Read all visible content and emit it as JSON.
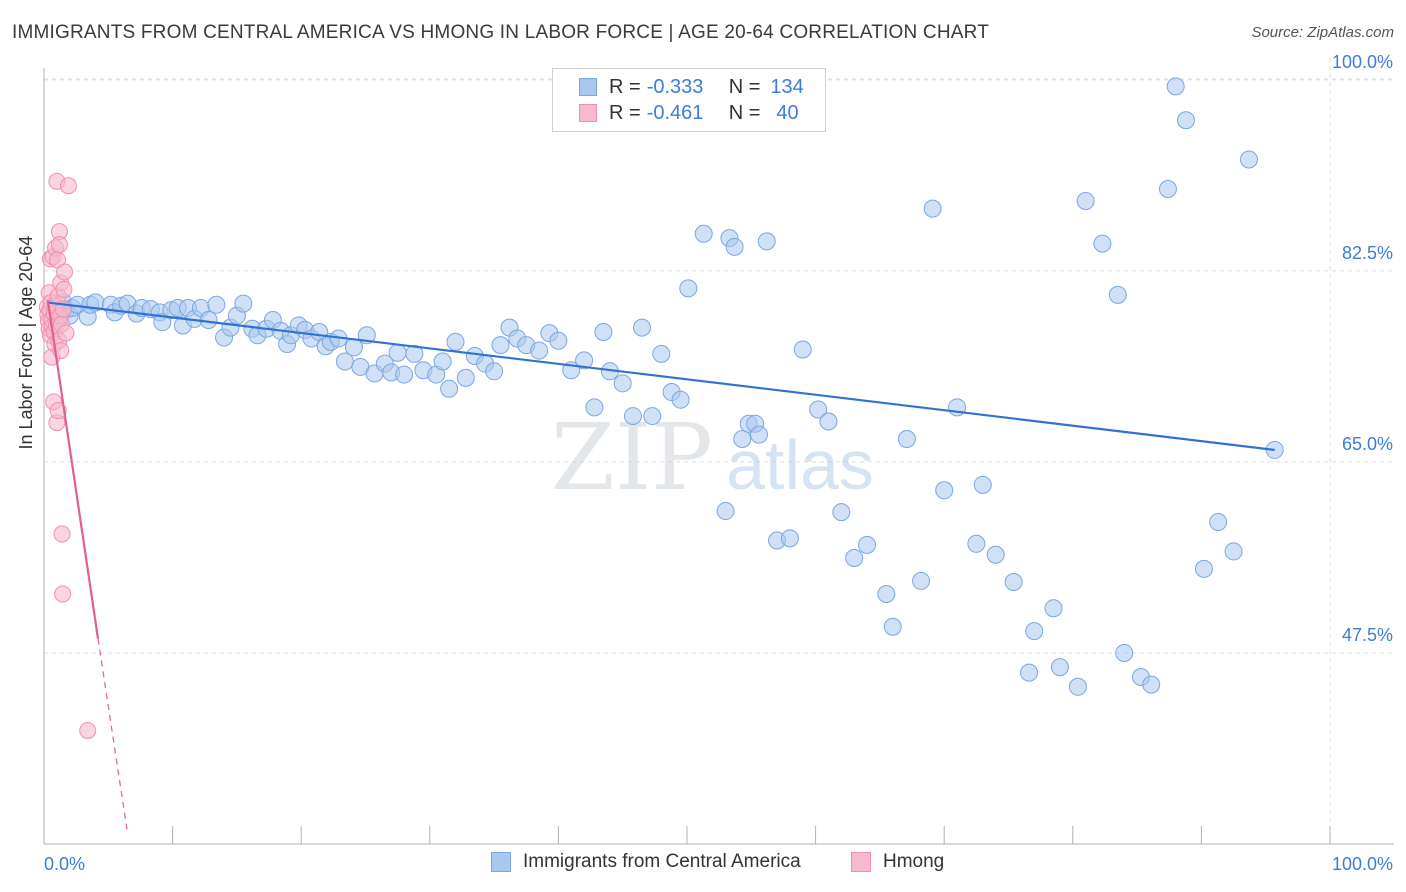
{
  "header": {
    "title": "IMMIGRANTS FROM CENTRAL AMERICA VS HMONG IN LABOR FORCE | AGE 20-64 CORRELATION CHART",
    "source": "Source: ZipAtlas.com"
  },
  "watermark": {
    "zip": "ZIP",
    "atlas": "atlas"
  },
  "legend": {
    "rows": [
      {
        "r_label": "R =",
        "r_value": "-0.333",
        "n_label": "N =",
        "n_value": "134",
        "color": "#a9c8f0"
      },
      {
        "r_label": "R =",
        "r_value": "-0.461",
        "n_label": "N =",
        "n_value": "40",
        "color": "#f7b9cc"
      }
    ]
  },
  "bottom_legend": {
    "series1": "Immigrants from Central America",
    "series2": "Hmong"
  },
  "chart_data": {
    "type": "scatter",
    "title": "IMMIGRANTS FROM CENTRAL AMERICA VS HMONG IN LABOR FORCE | AGE 20-64 CORRELATION CHART",
    "xlabel": "",
    "ylabel": "In Labor Force | Age 20-64",
    "xlim": [
      0,
      100
    ],
    "ylim": [
      30,
      102
    ],
    "x_tick_labels": [
      "0.0%",
      "100.0%"
    ],
    "y_tick_labels": [
      "100.0%",
      "82.5%",
      "65.0%",
      "47.5%"
    ],
    "y_ticks": [
      100.0,
      82.5,
      65.0,
      47.5
    ],
    "grid": true,
    "legend_position": "top-center",
    "colors": {
      "series1_fill": "#a9c8f0",
      "series1_stroke": "#7aa7e0",
      "series1_line": "#2f72d0",
      "series2_fill": "#f7b9cc",
      "series2_stroke": "#ef8fae",
      "series2_line": "#e0608e",
      "axis_tick_text": "#3b7dd8"
    },
    "series": [
      {
        "name": "Immigrants from Central America",
        "r": -0.333,
        "n": 134,
        "trend": {
          "x": [
            0.3,
            95.7
          ],
          "y": [
            79.6,
            66.1
          ]
        },
        "points": [
          [
            0.8,
            79.3
          ],
          [
            1.0,
            78.8
          ],
          [
            1.2,
            78.2
          ],
          [
            1.5,
            79.6
          ],
          [
            1.7,
            78.9
          ],
          [
            2.0,
            78.4
          ],
          [
            2.2,
            79.1
          ],
          [
            2.6,
            79.4
          ],
          [
            3.4,
            78.3
          ],
          [
            3.6,
            79.4
          ],
          [
            4.0,
            79.6
          ],
          [
            5.2,
            79.4
          ],
          [
            5.5,
            78.7
          ],
          [
            6.0,
            79.3
          ],
          [
            6.5,
            79.5
          ],
          [
            7.2,
            78.6
          ],
          [
            7.6,
            79.1
          ],
          [
            8.3,
            79.0
          ],
          [
            9.0,
            78.7
          ],
          [
            9.2,
            77.8
          ],
          [
            9.9,
            78.9
          ],
          [
            10.4,
            79.1
          ],
          [
            10.8,
            77.5
          ],
          [
            11.2,
            79.1
          ],
          [
            11.7,
            78.1
          ],
          [
            12.2,
            79.1
          ],
          [
            12.8,
            78.0
          ],
          [
            13.4,
            79.4
          ],
          [
            14.0,
            76.4
          ],
          [
            14.5,
            77.3
          ],
          [
            15.0,
            78.4
          ],
          [
            15.5,
            79.5
          ],
          [
            16.2,
            77.2
          ],
          [
            16.6,
            76.6
          ],
          [
            17.3,
            77.2
          ],
          [
            17.8,
            78.0
          ],
          [
            18.4,
            77.0
          ],
          [
            18.9,
            75.8
          ],
          [
            19.2,
            76.6
          ],
          [
            19.8,
            77.5
          ],
          [
            20.3,
            77.1
          ],
          [
            20.8,
            76.3
          ],
          [
            21.4,
            76.9
          ],
          [
            21.9,
            75.6
          ],
          [
            22.3,
            76.0
          ],
          [
            22.9,
            76.3
          ],
          [
            23.4,
            74.2
          ],
          [
            24.1,
            75.5
          ],
          [
            24.6,
            73.7
          ],
          [
            25.1,
            76.6
          ],
          [
            25.7,
            73.1
          ],
          [
            26.5,
            74.0
          ],
          [
            27.0,
            73.2
          ],
          [
            27.5,
            75.0
          ],
          [
            28.0,
            73.0
          ],
          [
            28.8,
            74.9
          ],
          [
            29.5,
            73.4
          ],
          [
            30.5,
            73.0
          ],
          [
            31.0,
            74.2
          ],
          [
            31.5,
            71.7
          ],
          [
            32.0,
            76.0
          ],
          [
            32.8,
            72.7
          ],
          [
            33.5,
            74.7
          ],
          [
            34.3,
            74.0
          ],
          [
            35.0,
            73.3
          ],
          [
            35.5,
            75.7
          ],
          [
            36.2,
            77.3
          ],
          [
            36.8,
            76.3
          ],
          [
            37.5,
            75.7
          ],
          [
            38.5,
            75.2
          ],
          [
            39.3,
            76.8
          ],
          [
            40.0,
            76.1
          ],
          [
            41.0,
            73.4
          ],
          [
            42.0,
            74.3
          ],
          [
            42.8,
            70.0
          ],
          [
            43.5,
            76.9
          ],
          [
            44.0,
            73.3
          ],
          [
            45.0,
            72.2
          ],
          [
            45.8,
            69.2
          ],
          [
            46.5,
            77.3
          ],
          [
            47.3,
            69.2
          ],
          [
            48.0,
            74.9
          ],
          [
            48.8,
            71.4
          ],
          [
            49.5,
            70.7
          ],
          [
            50.1,
            80.9
          ],
          [
            51.3,
            85.9
          ],
          [
            53.0,
            60.5
          ],
          [
            53.3,
            85.5
          ],
          [
            53.7,
            84.7
          ],
          [
            54.3,
            67.1
          ],
          [
            54.8,
            68.5
          ],
          [
            55.3,
            68.5
          ],
          [
            55.6,
            67.5
          ],
          [
            56.2,
            85.2
          ],
          [
            57.0,
            57.8
          ],
          [
            58.0,
            58.0
          ],
          [
            59.0,
            75.3
          ],
          [
            60.2,
            69.8
          ],
          [
            61.0,
            68.7
          ],
          [
            62.0,
            60.4
          ],
          [
            63.0,
            56.2
          ],
          [
            64.0,
            57.4
          ],
          [
            65.5,
            52.9
          ],
          [
            66.0,
            49.9
          ],
          [
            67.1,
            67.1
          ],
          [
            68.2,
            54.1
          ],
          [
            69.1,
            88.2
          ],
          [
            70.0,
            62.4
          ],
          [
            71.0,
            70.0
          ],
          [
            72.5,
            57.5
          ],
          [
            73.0,
            62.9
          ],
          [
            74.0,
            56.5
          ],
          [
            75.4,
            54.0
          ],
          [
            76.6,
            45.7
          ],
          [
            77.0,
            49.5
          ],
          [
            78.5,
            51.6
          ],
          [
            79.0,
            46.2
          ],
          [
            80.4,
            44.4
          ],
          [
            81.0,
            88.9
          ],
          [
            82.3,
            85.0
          ],
          [
            83.5,
            80.3
          ],
          [
            84.0,
            47.5
          ],
          [
            85.3,
            45.3
          ],
          [
            86.1,
            44.6
          ],
          [
            87.4,
            90.0
          ],
          [
            88.0,
            99.4
          ],
          [
            88.8,
            96.3
          ],
          [
            90.2,
            55.2
          ],
          [
            91.3,
            59.5
          ],
          [
            92.5,
            56.8
          ],
          [
            93.7,
            92.7
          ],
          [
            95.7,
            66.1
          ]
        ]
      },
      {
        "name": "Hmong",
        "r": -0.461,
        "n": 40,
        "trend": {
          "x": [
            0.3,
            4.2
          ],
          "y": [
            79.8,
            48.8
          ]
        },
        "trend_dashed": {
          "x": [
            4.2,
            6.5
          ],
          "y": [
            48.8,
            31.0
          ]
        },
        "points": [
          [
            0.25,
            79.2
          ],
          [
            0.3,
            78.5
          ],
          [
            0.35,
            77.9
          ],
          [
            0.4,
            77.2
          ],
          [
            0.4,
            80.5
          ],
          [
            0.45,
            78.9
          ],
          [
            0.5,
            76.6
          ],
          [
            0.5,
            83.6
          ],
          [
            0.55,
            79.6
          ],
          [
            0.6,
            78.0
          ],
          [
            0.6,
            74.6
          ],
          [
            0.65,
            77.4
          ],
          [
            0.7,
            83.8
          ],
          [
            0.75,
            70.5
          ],
          [
            0.8,
            78.6
          ],
          [
            0.8,
            76.9
          ],
          [
            0.85,
            75.8
          ],
          [
            0.9,
            84.6
          ],
          [
            0.9,
            79.3
          ],
          [
            0.95,
            77.5
          ],
          [
            1.0,
            90.7
          ],
          [
            1.0,
            68.6
          ],
          [
            1.05,
            83.5
          ],
          [
            1.1,
            80.2
          ],
          [
            1.1,
            69.7
          ],
          [
            1.15,
            76.1
          ],
          [
            1.2,
            86.1
          ],
          [
            1.2,
            84.9
          ],
          [
            1.25,
            78.4
          ],
          [
            1.3,
            75.2
          ],
          [
            1.3,
            81.4
          ],
          [
            1.35,
            77.6
          ],
          [
            1.4,
            58.4
          ],
          [
            1.45,
            52.9
          ],
          [
            1.5,
            79.0
          ],
          [
            1.55,
            80.8
          ],
          [
            1.6,
            82.4
          ],
          [
            1.7,
            76.8
          ],
          [
            1.9,
            90.3
          ],
          [
            3.4,
            40.4
          ]
        ]
      }
    ]
  }
}
